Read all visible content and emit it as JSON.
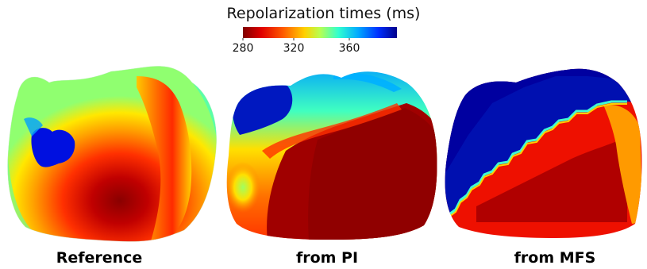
{
  "colorbar": {
    "title": "Repolarization times (ms)",
    "ticks": [
      "280",
      "320",
      "360"
    ],
    "colormap": [
      "#800000",
      "#ff0000",
      "#ff8000",
      "#ffff00",
      "#80ff80",
      "#00ffff",
      "#0080ff",
      "#0000ff",
      "#00008b"
    ]
  },
  "panels": [
    {
      "label": "Reference"
    },
    {
      "label": "from PI"
    },
    {
      "label": "from MFS"
    }
  ]
}
